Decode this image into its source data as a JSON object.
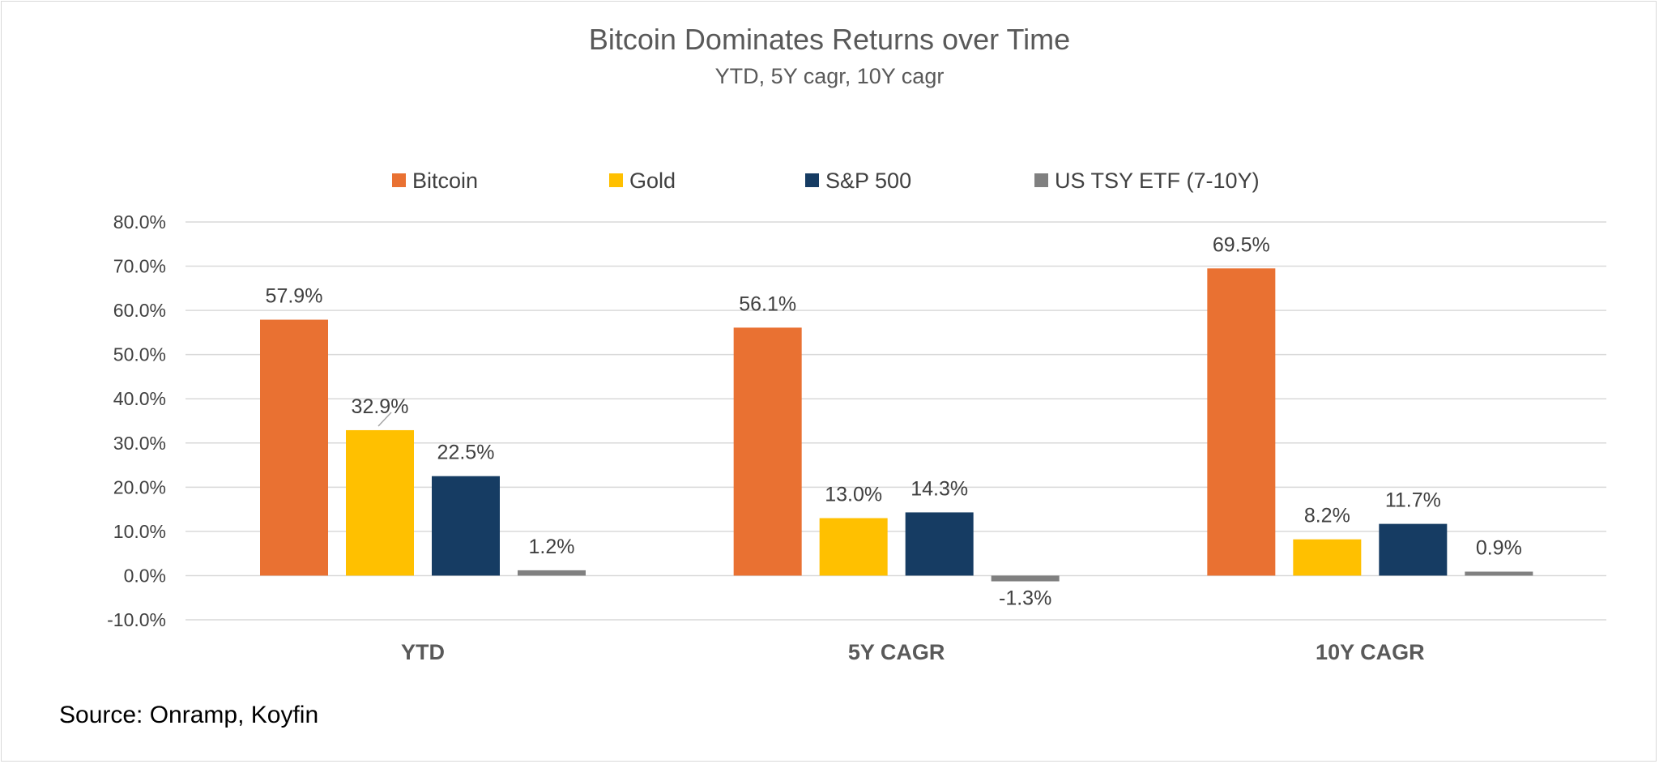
{
  "chart_data": {
    "type": "bar",
    "title": "Bitcoin Dominates Returns over Time",
    "subtitle": "YTD, 5Y cagr, 10Y cagr",
    "categories": [
      "YTD",
      "5Y CAGR",
      "10Y CAGR"
    ],
    "series": [
      {
        "name": "Bitcoin",
        "color": "#E97132",
        "values": [
          57.9,
          56.1,
          69.5
        ],
        "labels": [
          "57.9%",
          "56.1%",
          "69.5%"
        ]
      },
      {
        "name": "Gold",
        "color": "#FFC000",
        "values": [
          32.9,
          13.0,
          8.2
        ],
        "labels": [
          "32.9%",
          "13.0%",
          "8.2%"
        ]
      },
      {
        "name": "S&P 500",
        "color": "#163C63",
        "values": [
          22.5,
          14.3,
          11.7
        ],
        "labels": [
          "22.5%",
          "14.3%",
          "11.7%"
        ]
      },
      {
        "name": "US TSY ETF (7-10Y)",
        "color": "#808080",
        "values": [
          1.2,
          -1.3,
          0.9
        ],
        "labels": [
          "1.2%",
          "-1.3%",
          "0.9%"
        ]
      }
    ],
    "y_ticks": [
      "80.0%",
      "70.0%",
      "60.0%",
      "50.0%",
      "40.0%",
      "30.0%",
      "20.0%",
      "10.0%",
      "0.0%",
      "-10.0%"
    ],
    "y_tick_values": [
      80,
      70,
      60,
      50,
      40,
      30,
      20,
      10,
      0,
      -10
    ],
    "ylim": [
      -10,
      80
    ],
    "grid": true,
    "legend_position": "top",
    "xlabel": "",
    "ylabel": ""
  },
  "source_note": "Source: Onramp, Koyfin"
}
